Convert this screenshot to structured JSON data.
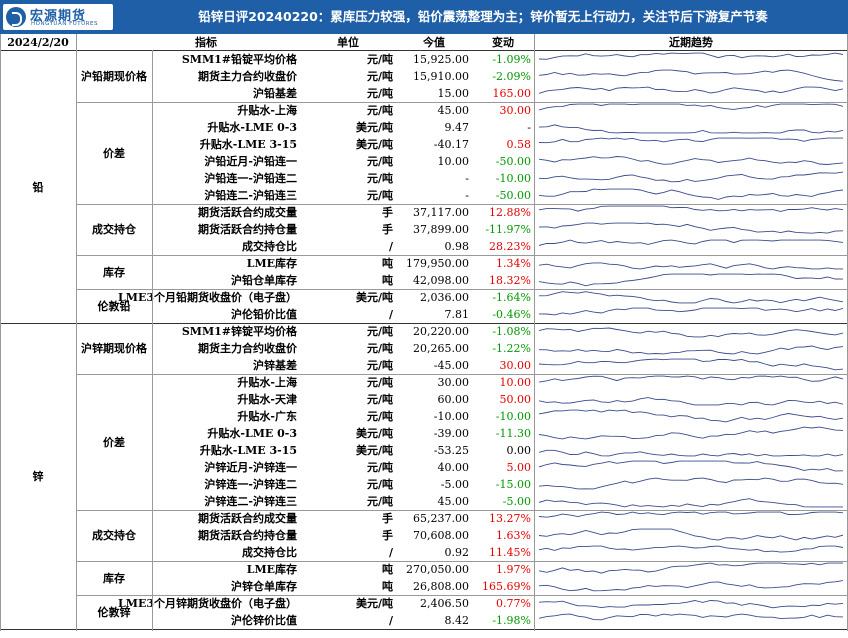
{
  "header": {
    "logo_cn": "宏源期货",
    "logo_en": "HONGYUAN FUTURES",
    "title": "铅锌日评20240220：累库压力较强，铅价震荡整理为主；锌价暂无上行动力，关注节后下游复产节奏"
  },
  "colors": {
    "header_bg": "#1f5fa8",
    "up": "#e60000",
    "down": "#009900",
    "trend_line": "#3b4a8c"
  },
  "columns": {
    "date": "2024/2/20",
    "indicator": "指标",
    "unit": "单位",
    "value": "今值",
    "change": "变动",
    "trend": "近期趋势"
  },
  "sections": [
    {
      "category": "铅",
      "groups": [
        {
          "name": "沪铅期现价格",
          "rows": [
            {
              "indicator": "SMM1#铅锭平均价格",
              "unit": "元/吨",
              "value": "15,925.00",
              "change": "-1.09%",
              "dir": "down"
            },
            {
              "indicator": "期货主力合约收盘价",
              "unit": "元/吨",
              "value": "15,910.00",
              "change": "-2.09%",
              "dir": "down"
            },
            {
              "indicator": "沪铅基差",
              "unit": "元/吨",
              "value": "15.00",
              "change": "165.00",
              "dir": "up"
            }
          ]
        },
        {
          "name": "价差",
          "rows": [
            {
              "indicator": "升贴水-上海",
              "unit": "元/吨",
              "value": "45.00",
              "change": "30.00",
              "dir": "up"
            },
            {
              "indicator": "升贴水-LME 0-3",
              "unit": "美元/吨",
              "value": "9.47",
              "change": "-",
              "dir": "flat"
            },
            {
              "indicator": "升贴水-LME 3-15",
              "unit": "美元/吨",
              "value": "-40.17",
              "change": "0.58",
              "dir": "up"
            },
            {
              "indicator": "沪铅近月-沪铅连一",
              "unit": "元/吨",
              "value": "10.00",
              "change": "-50.00",
              "dir": "down"
            },
            {
              "indicator": "沪铅连一-沪铅连二",
              "unit": "元/吨",
              "value": "-",
              "change": "-10.00",
              "dir": "down"
            },
            {
              "indicator": "沪铅连二-沪铅连三",
              "unit": "元/吨",
              "value": "-",
              "change": "-50.00",
              "dir": "down"
            }
          ]
        },
        {
          "name": "成交持仓",
          "rows": [
            {
              "indicator": "期货活跃合约成交量",
              "unit": "手",
              "value": "37,117.00",
              "change": "12.88%",
              "dir": "up"
            },
            {
              "indicator": "期货活跃合约持仓量",
              "unit": "手",
              "value": "37,899.00",
              "change": "-11.97%",
              "dir": "down"
            },
            {
              "indicator": "成交持仓比",
              "unit": "/",
              "value": "0.98",
              "change": "28.23%",
              "dir": "up"
            }
          ]
        },
        {
          "name": "库存",
          "rows": [
            {
              "indicator": "LME库存",
              "unit": "吨",
              "value": "179,950.00",
              "change": "1.34%",
              "dir": "up"
            },
            {
              "indicator": "沪铅仓单库存",
              "unit": "吨",
              "value": "42,098.00",
              "change": "18.32%",
              "dir": "up"
            }
          ]
        },
        {
          "name": "伦敦铅",
          "rows": [
            {
              "indicator": "LME3个月铅期货收盘价（电子盘）",
              "unit": "美元/吨",
              "value": "2,036.00",
              "change": "-1.64%",
              "dir": "down"
            },
            {
              "indicator": "沪伦铅价比值",
              "unit": "/",
              "value": "7.81",
              "change": "-0.46%",
              "dir": "down"
            }
          ]
        }
      ]
    },
    {
      "category": "锌",
      "groups": [
        {
          "name": "沪锌期现价格",
          "rows": [
            {
              "indicator": "SMM1#锌锭平均价格",
              "unit": "元/吨",
              "value": "20,220.00",
              "change": "-1.08%",
              "dir": "down"
            },
            {
              "indicator": "期货主力合约收盘价",
              "unit": "元/吨",
              "value": "20,265.00",
              "change": "-1.22%",
              "dir": "down"
            },
            {
              "indicator": "沪锌基差",
              "unit": "元/吨",
              "value": "-45.00",
              "change": "30.00",
              "dir": "up"
            }
          ]
        },
        {
          "name": "价差",
          "rows": [
            {
              "indicator": "升贴水-上海",
              "unit": "元/吨",
              "value": "30.00",
              "change": "10.00",
              "dir": "up"
            },
            {
              "indicator": "升贴水-天津",
              "unit": "元/吨",
              "value": "60.00",
              "change": "50.00",
              "dir": "up"
            },
            {
              "indicator": "升贴水-广东",
              "unit": "元/吨",
              "value": "-10.00",
              "change": "-10.00",
              "dir": "down"
            },
            {
              "indicator": "升贴水-LME 0-3",
              "unit": "美元/吨",
              "value": "-39.00",
              "change": "-11.30",
              "dir": "down"
            },
            {
              "indicator": "升贴水-LME 3-15",
              "unit": "美元/吨",
              "value": "-53.25",
              "change": "0.00",
              "dir": "flat"
            },
            {
              "indicator": "沪锌近月-沪锌连一",
              "unit": "元/吨",
              "value": "40.00",
              "change": "5.00",
              "dir": "up"
            },
            {
              "indicator": "沪锌连一-沪锌连二",
              "unit": "元/吨",
              "value": "-5.00",
              "change": "-15.00",
              "dir": "down"
            },
            {
              "indicator": "沪锌连二-沪锌连三",
              "unit": "元/吨",
              "value": "45.00",
              "change": "-5.00",
              "dir": "down"
            }
          ]
        },
        {
          "name": "成交持仓",
          "rows": [
            {
              "indicator": "期货活跃合约成交量",
              "unit": "手",
              "value": "65,237.00",
              "change": "13.27%",
              "dir": "up"
            },
            {
              "indicator": "期货活跃合约持仓量",
              "unit": "手",
              "value": "70,608.00",
              "change": "1.63%",
              "dir": "up"
            },
            {
              "indicator": "成交持仓比",
              "unit": "/",
              "value": "0.92",
              "change": "11.45%",
              "dir": "up"
            }
          ]
        },
        {
          "name": "库存",
          "rows": [
            {
              "indicator": "LME库存",
              "unit": "吨",
              "value": "270,050.00",
              "change": "1.97%",
              "dir": "up"
            },
            {
              "indicator": "沪锌仓单库存",
              "unit": "吨",
              "value": "26,808.00",
              "change": "165.69%",
              "dir": "up"
            }
          ]
        },
        {
          "name": "伦敦锌",
          "rows": [
            {
              "indicator": "LME3个月锌期货收盘价（电子盘）",
              "unit": "美元/吨",
              "value": "2,406.50",
              "change": "0.77%",
              "dir": "up"
            },
            {
              "indicator": "沪伦锌价比值",
              "unit": "/",
              "value": "8.42",
              "change": "-1.98%",
              "dir": "down"
            }
          ]
        }
      ]
    }
  ]
}
